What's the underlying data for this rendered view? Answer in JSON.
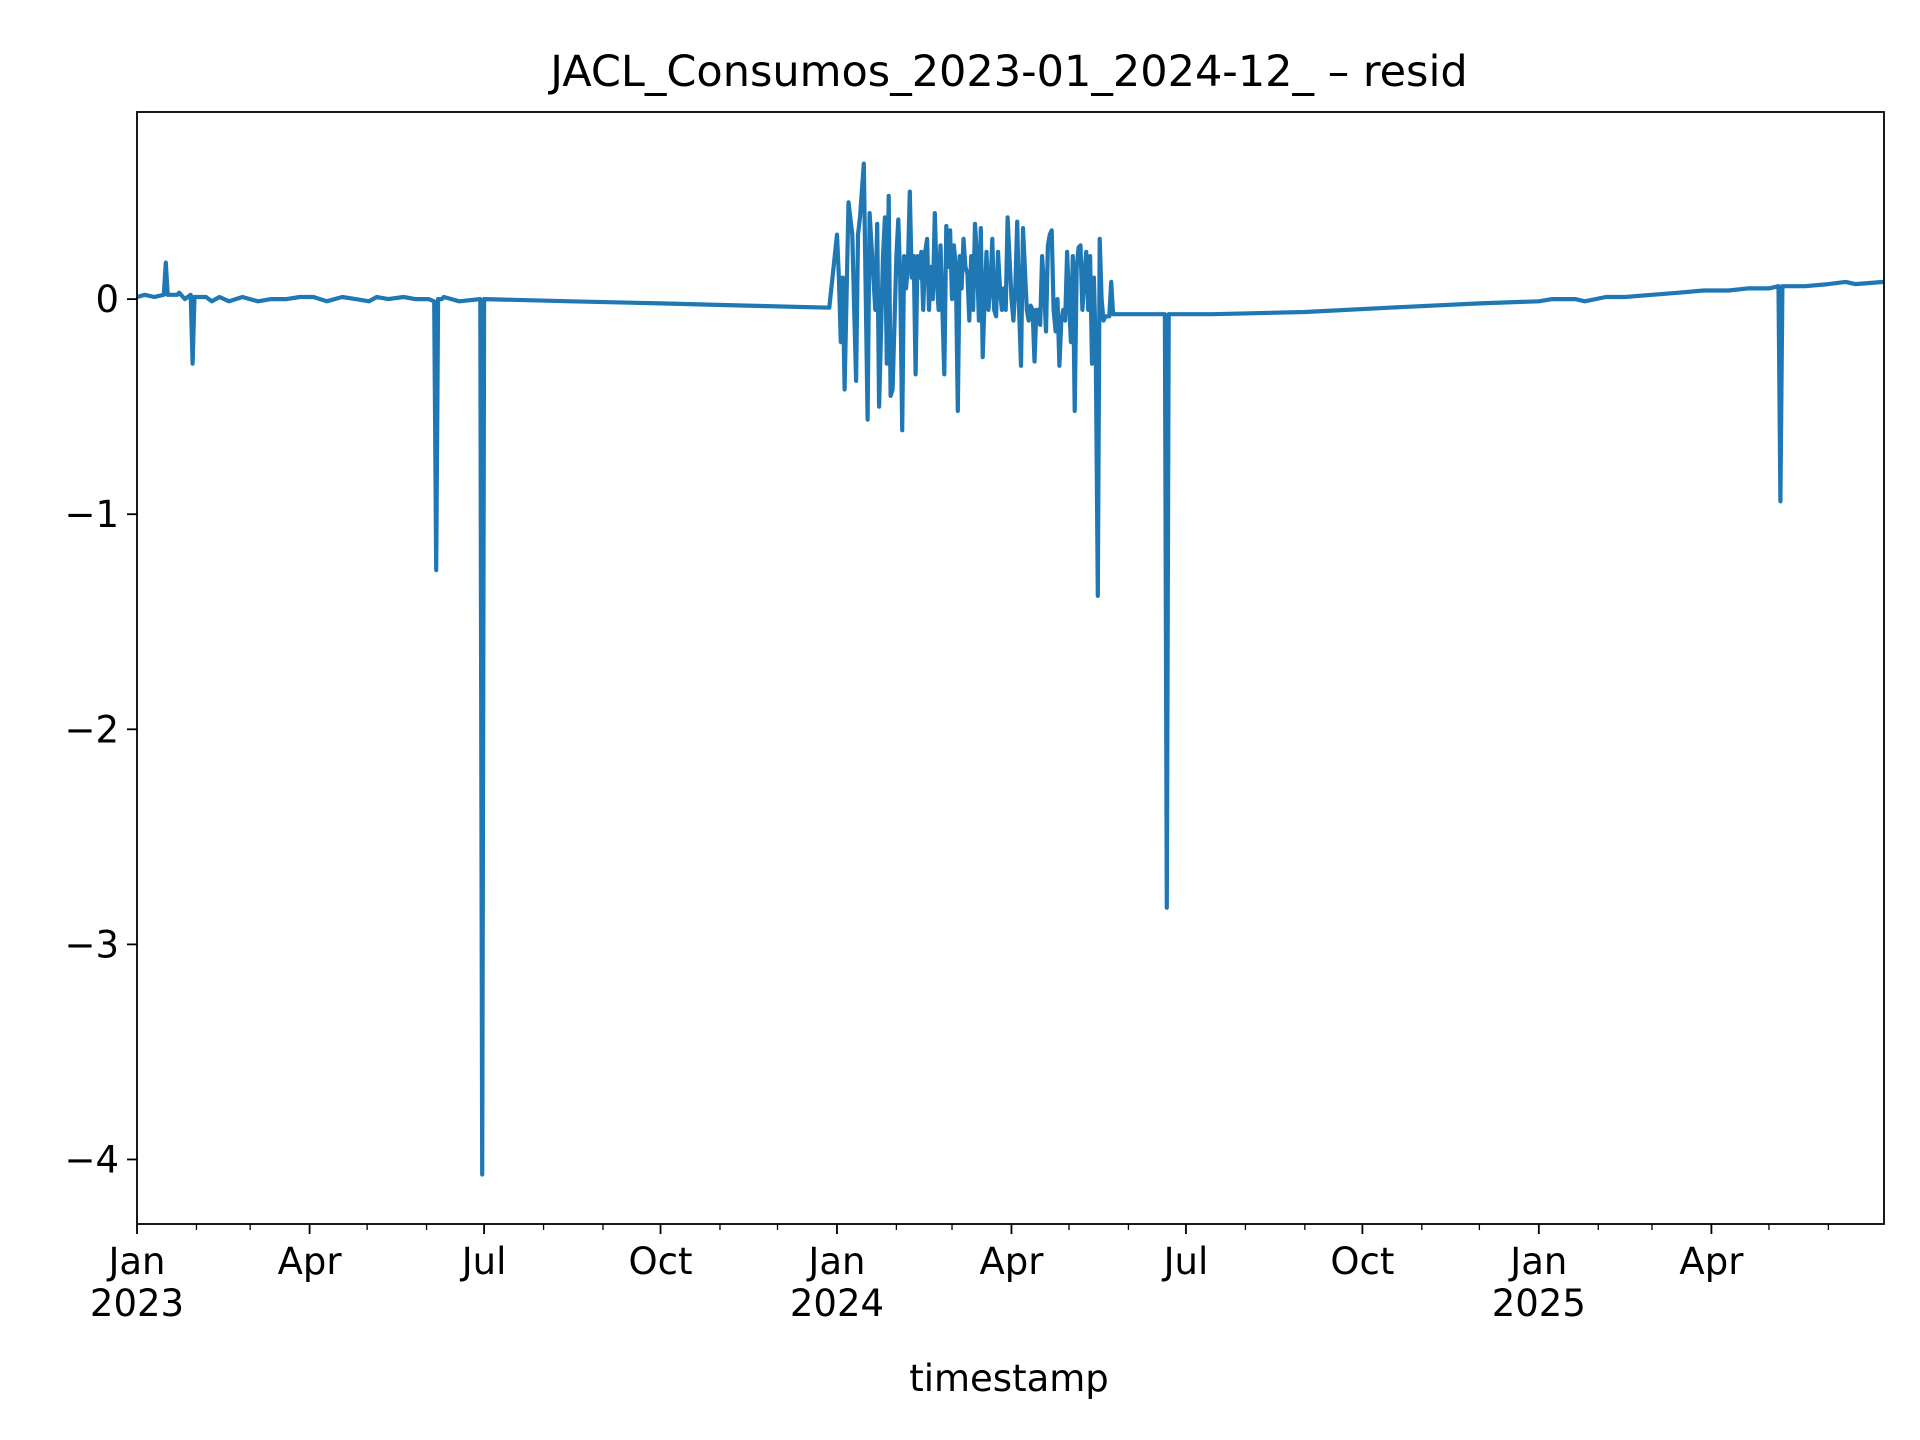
{
  "chart_data": {
    "type": "line",
    "title": "JACL_Consumos_2023-01_2024-12_ – resid",
    "xlabel": "timestamp",
    "ylabel": "",
    "xlim": [
      "2023-01-01",
      "2025-06-30"
    ],
    "ylim": [
      -4.3,
      0.87
    ],
    "grid": false,
    "line_color": "#1f77b4",
    "y_ticks": [
      {
        "value": 0,
        "label": "0"
      },
      {
        "value": -1,
        "label": "−1"
      },
      {
        "value": -2,
        "label": "−2"
      },
      {
        "value": -3,
        "label": "−3"
      },
      {
        "value": -4,
        "label": "−4"
      }
    ],
    "x_major_ticks": [
      {
        "date": "2023-01-01",
        "label": "Jan",
        "year": "2023"
      },
      {
        "date": "2023-04-01",
        "label": "Apr",
        "year": ""
      },
      {
        "date": "2023-07-01",
        "label": "Jul",
        "year": ""
      },
      {
        "date": "2023-10-01",
        "label": "Oct",
        "year": ""
      },
      {
        "date": "2024-01-01",
        "label": "Jan",
        "year": "2024"
      },
      {
        "date": "2024-04-01",
        "label": "Apr",
        "year": ""
      },
      {
        "date": "2024-07-01",
        "label": "Jul",
        "year": ""
      },
      {
        "date": "2024-10-01",
        "label": "Oct",
        "year": ""
      },
      {
        "date": "2025-01-01",
        "label": "Jan",
        "year": "2025"
      },
      {
        "date": "2025-04-01",
        "label": "Apr",
        "year": ""
      }
    ],
    "x_minor_ticks": [
      "2023-02-01",
      "2023-03-01",
      "2023-05-01",
      "2023-06-01",
      "2023-08-01",
      "2023-09-01",
      "2023-11-01",
      "2023-12-01",
      "2024-02-01",
      "2024-03-01",
      "2024-05-01",
      "2024-06-01",
      "2024-08-01",
      "2024-09-01",
      "2024-11-01",
      "2024-12-01",
      "2025-02-01",
      "2025-03-01",
      "2025-05-01",
      "2025-06-01",
      "2025-07-01"
    ],
    "series": [
      {
        "points": [
          [
            "2023-01-01",
            0.01
          ],
          [
            "2023-01-05",
            0.02
          ],
          [
            "2023-01-10",
            0.01
          ],
          [
            "2023-01-15",
            0.02
          ],
          [
            "2023-01-16",
            0.17
          ],
          [
            "2023-01-17",
            0.02
          ],
          [
            "2023-01-22",
            0.02
          ],
          [
            "2023-01-23",
            0.03
          ],
          [
            "2023-01-26",
            0.0
          ],
          [
            "2023-01-29",
            0.02
          ],
          [
            "2023-01-30",
            -0.3
          ],
          [
            "2023-01-31",
            0.01
          ],
          [
            "2023-02-06",
            0.01
          ],
          [
            "2023-02-09",
            -0.01
          ],
          [
            "2023-02-13",
            0.01
          ],
          [
            "2023-02-18",
            -0.01
          ],
          [
            "2023-02-25",
            0.01
          ],
          [
            "2023-03-05",
            -0.01
          ],
          [
            "2023-03-12",
            0.0
          ],
          [
            "2023-03-20",
            0.0
          ],
          [
            "2023-03-27",
            0.01
          ],
          [
            "2023-04-03",
            0.01
          ],
          [
            "2023-04-10",
            -0.01
          ],
          [
            "2023-04-18",
            0.01
          ],
          [
            "2023-04-25",
            0.0
          ],
          [
            "2023-05-02",
            -0.01
          ],
          [
            "2023-05-06",
            0.01
          ],
          [
            "2023-05-12",
            0.0
          ],
          [
            "2023-05-20",
            0.01
          ],
          [
            "2023-05-26",
            0.0
          ],
          [
            "2023-06-02",
            0.0
          ],
          [
            "2023-06-05",
            -0.01
          ],
          [
            "2023-06-06",
            -1.26
          ],
          [
            "2023-06-07",
            0.0
          ],
          [
            "2023-06-09",
            0.0
          ],
          [
            "2023-06-10",
            0.01
          ],
          [
            "2023-06-14",
            0.0
          ],
          [
            "2023-06-18",
            -0.01
          ],
          [
            "2023-06-29",
            0.0
          ],
          [
            "2023-06-30",
            -4.07
          ],
          [
            "2023-07-01",
            0.0
          ],
          [
            "2023-08-15",
            -0.01
          ],
          [
            "2023-10-01",
            -0.02
          ],
          [
            "2023-11-15",
            -0.03
          ],
          [
            "2023-12-28",
            -0.04
          ],
          [
            "2024-01-01",
            0.3
          ],
          [
            "2024-01-02",
            0.1
          ],
          [
            "2024-01-03",
            -0.2
          ],
          [
            "2024-01-04",
            0.1
          ],
          [
            "2024-01-05",
            -0.42
          ],
          [
            "2024-01-07",
            0.45
          ],
          [
            "2024-01-09",
            0.3
          ],
          [
            "2024-01-10",
            -0.05
          ],
          [
            "2024-01-11",
            -0.38
          ],
          [
            "2024-01-12",
            0.3
          ],
          [
            "2024-01-13",
            0.38
          ],
          [
            "2024-01-15",
            0.63
          ],
          [
            "2024-01-17",
            -0.56
          ],
          [
            "2024-01-18",
            0.4
          ],
          [
            "2024-01-20",
            0.1
          ],
          [
            "2024-01-21",
            -0.05
          ],
          [
            "2024-01-22",
            0.35
          ],
          [
            "2024-01-23",
            -0.5
          ],
          [
            "2024-01-25",
            0.2
          ],
          [
            "2024-01-26",
            0.38
          ],
          [
            "2024-01-27",
            -0.3
          ],
          [
            "2024-01-28",
            0.48
          ],
          [
            "2024-01-29",
            -0.45
          ],
          [
            "2024-01-30",
            -0.42
          ],
          [
            "2024-02-01",
            0.2
          ],
          [
            "2024-02-02",
            0.37
          ],
          [
            "2024-02-03",
            0.1
          ],
          [
            "2024-02-04",
            -0.61
          ],
          [
            "2024-02-05",
            0.2
          ],
          [
            "2024-02-06",
            0.05
          ],
          [
            "2024-02-07",
            0.15
          ],
          [
            "2024-02-08",
            0.5
          ],
          [
            "2024-02-09",
            0.1
          ],
          [
            "2024-02-10",
            0.2
          ],
          [
            "2024-02-11",
            -0.35
          ],
          [
            "2024-02-12",
            0.2
          ],
          [
            "2024-02-13",
            0.1
          ],
          [
            "2024-02-14",
            0.22
          ],
          [
            "2024-02-15",
            -0.05
          ],
          [
            "2024-02-16",
            0.22
          ],
          [
            "2024-02-17",
            0.28
          ],
          [
            "2024-02-18",
            -0.05
          ],
          [
            "2024-02-19",
            0.15
          ],
          [
            "2024-02-20",
            0.0
          ],
          [
            "2024-02-21",
            0.4
          ],
          [
            "2024-02-22",
            0.1
          ],
          [
            "2024-02-23",
            -0.05
          ],
          [
            "2024-02-24",
            0.25
          ],
          [
            "2024-02-26",
            -0.35
          ],
          [
            "2024-02-27",
            0.34
          ],
          [
            "2024-02-28",
            0.15
          ],
          [
            "2024-02-29",
            0.32
          ],
          [
            "2024-03-01",
            0.0
          ],
          [
            "2024-03-02",
            0.25
          ],
          [
            "2024-03-03",
            0.15
          ],
          [
            "2024-03-04",
            -0.52
          ],
          [
            "2024-03-05",
            0.2
          ],
          [
            "2024-03-06",
            0.05
          ],
          [
            "2024-03-07",
            0.28
          ],
          [
            "2024-03-08",
            0.15
          ],
          [
            "2024-03-09",
            0.12
          ],
          [
            "2024-03-10",
            -0.1
          ],
          [
            "2024-03-11",
            0.2
          ],
          [
            "2024-03-12",
            -0.05
          ],
          [
            "2024-03-13",
            0.35
          ],
          [
            "2024-03-14",
            0.2
          ],
          [
            "2024-03-15",
            -0.1
          ],
          [
            "2024-03-16",
            0.33
          ],
          [
            "2024-03-17",
            -0.27
          ],
          [
            "2024-03-18",
            0.0
          ],
          [
            "2024-03-19",
            0.22
          ],
          [
            "2024-03-20",
            -0.05
          ],
          [
            "2024-03-21",
            0.05
          ],
          [
            "2024-03-22",
            0.28
          ],
          [
            "2024-03-23",
            -0.05
          ],
          [
            "2024-03-24",
            -0.08
          ],
          [
            "2024-03-25",
            0.22
          ],
          [
            "2024-03-26",
            0.05
          ],
          [
            "2024-03-27",
            -0.05
          ],
          [
            "2024-03-28",
            0.05
          ],
          [
            "2024-03-29",
            -0.05
          ],
          [
            "2024-03-30",
            0.38
          ],
          [
            "2024-04-01",
            0.0
          ],
          [
            "2024-04-02",
            -0.1
          ],
          [
            "2024-04-03",
            0.05
          ],
          [
            "2024-04-04",
            0.36
          ],
          [
            "2024-04-05",
            -0.05
          ],
          [
            "2024-04-06",
            -0.31
          ],
          [
            "2024-04-07",
            0.33
          ],
          [
            "2024-04-09",
            -0.05
          ],
          [
            "2024-04-10",
            -0.1
          ],
          [
            "2024-04-11",
            -0.03
          ],
          [
            "2024-04-12",
            -0.05
          ],
          [
            "2024-04-13",
            -0.29
          ],
          [
            "2024-04-14",
            -0.05
          ],
          [
            "2024-04-15",
            -0.05
          ],
          [
            "2024-04-16",
            -0.12
          ],
          [
            "2024-04-17",
            0.2
          ],
          [
            "2024-04-18",
            0.05
          ],
          [
            "2024-04-19",
            -0.15
          ],
          [
            "2024-04-20",
            0.25
          ],
          [
            "2024-04-21",
            0.3
          ],
          [
            "2024-04-22",
            0.32
          ],
          [
            "2024-04-23",
            -0.05
          ],
          [
            "2024-04-24",
            -0.15
          ],
          [
            "2024-04-25",
            0.0
          ],
          [
            "2024-04-26",
            -0.31
          ],
          [
            "2024-04-27",
            -0.1
          ],
          [
            "2024-04-28",
            -0.05
          ],
          [
            "2024-04-29",
            -0.1
          ],
          [
            "2024-04-30",
            0.22
          ],
          [
            "2024-05-01",
            0.0
          ],
          [
            "2024-05-02",
            -0.2
          ],
          [
            "2024-05-03",
            0.2
          ],
          [
            "2024-05-04",
            -0.52
          ],
          [
            "2024-05-05",
            0.15
          ],
          [
            "2024-05-06",
            0.24
          ],
          [
            "2024-05-07",
            0.25
          ],
          [
            "2024-05-08",
            -0.05
          ],
          [
            "2024-05-09",
            0.1
          ],
          [
            "2024-05-10",
            0.22
          ],
          [
            "2024-05-11",
            -0.05
          ],
          [
            "2024-05-12",
            0.2
          ],
          [
            "2024-05-13",
            -0.3
          ],
          [
            "2024-05-14",
            0.1
          ],
          [
            "2024-05-15",
            -0.25
          ],
          [
            "2024-05-16",
            -1.38
          ],
          [
            "2024-05-17",
            0.28
          ],
          [
            "2024-05-18",
            0.0
          ],
          [
            "2024-05-19",
            -0.1
          ],
          [
            "2024-05-20",
            -0.08
          ],
          [
            "2024-05-22",
            -0.08
          ],
          [
            "2024-05-23",
            0.08
          ],
          [
            "2024-05-24",
            -0.07
          ],
          [
            "2024-06-20",
            -0.07
          ],
          [
            "2024-06-21",
            -2.83
          ],
          [
            "2024-06-22",
            -0.07
          ],
          [
            "2024-07-15",
            -0.07
          ],
          [
            "2024-09-01",
            -0.06
          ],
          [
            "2024-10-15",
            -0.04
          ],
          [
            "2024-12-01",
            -0.02
          ],
          [
            "2025-01-01",
            -0.01
          ],
          [
            "2025-01-08",
            -0.0
          ],
          [
            "2025-01-20",
            0.0
          ],
          [
            "2025-01-25",
            -0.01
          ],
          [
            "2025-02-05",
            0.01
          ],
          [
            "2025-02-15",
            0.01
          ],
          [
            "2025-03-01",
            0.02
          ],
          [
            "2025-03-15",
            0.03
          ],
          [
            "2025-03-28",
            0.04
          ],
          [
            "2025-04-10",
            0.04
          ],
          [
            "2025-04-20",
            0.05
          ],
          [
            "2025-05-01",
            0.05
          ],
          [
            "2025-05-06",
            0.06
          ],
          [
            "2025-05-07",
            -0.94
          ],
          [
            "2025-05-08",
            0.06
          ],
          [
            "2025-05-20",
            0.06
          ],
          [
            "2025-06-01",
            0.07
          ],
          [
            "2025-06-10",
            0.08
          ],
          [
            "2025-06-15",
            0.07
          ],
          [
            "2025-06-30",
            0.08
          ]
        ]
      }
    ]
  }
}
